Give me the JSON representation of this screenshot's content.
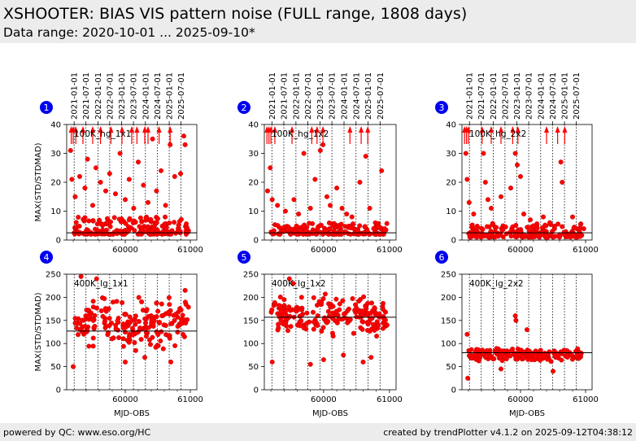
{
  "header": {
    "title": "XSHOOTER: BIAS VIS pattern noise (FULL range, 1808 days)",
    "subtitle": "Data range: 2020-10-01 ... 2025-09-10*"
  },
  "footer": {
    "left": "powered by QC: www.eso.org/HC",
    "right": "created by trendPlotter v4.1.2 on 2025-09-12T04:38:12"
  },
  "chart_data": [
    {
      "type": "scatter",
      "index": "1",
      "label": "100K_hg_1x1",
      "ylabel": "MAX(STD/STDMAD)",
      "xlabel": "",
      "ylim": [
        0,
        40
      ],
      "yticks": [
        0,
        10,
        20,
        30,
        40
      ],
      "xlim": [
        59100,
        61100
      ],
      "xticks": [
        60000,
        61000
      ],
      "reference": 2.5,
      "typical": [
        2,
        8
      ],
      "outliers": [
        [
          59160,
          31
        ],
        [
          59180,
          21
        ],
        [
          59230,
          15
        ],
        [
          59300,
          22
        ],
        [
          59380,
          18
        ],
        [
          59420,
          28
        ],
        [
          59500,
          12
        ],
        [
          59550,
          25
        ],
        [
          59620,
          20
        ],
        [
          59700,
          17
        ],
        [
          59760,
          23
        ],
        [
          59850,
          16
        ],
        [
          59920,
          30
        ],
        [
          60000,
          14
        ],
        [
          60060,
          21
        ],
        [
          60130,
          11
        ],
        [
          60200,
          27
        ],
        [
          60280,
          19
        ],
        [
          60350,
          13
        ],
        [
          60420,
          35
        ],
        [
          60480,
          17
        ],
        [
          60550,
          24
        ],
        [
          60620,
          12
        ],
        [
          60690,
          33
        ],
        [
          60760,
          22
        ],
        [
          60850,
          23
        ],
        [
          60900,
          36
        ],
        [
          60920,
          33
        ]
      ],
      "arrows": [
        59170,
        59200,
        59240,
        59350,
        59500,
        59620,
        59780,
        59950,
        60100,
        60180,
        60300,
        60350,
        60520,
        60690
      ]
    },
    {
      "type": "scatter",
      "index": "2",
      "label": "100K_hg_1x2",
      "ylabel": "",
      "xlabel": "",
      "ylim": [
        0,
        40
      ],
      "yticks": [
        0,
        10,
        20,
        30,
        40
      ],
      "xlim": [
        59100,
        61100
      ],
      "xticks": [
        60000,
        61000
      ],
      "reference": 2.5,
      "typical": [
        2,
        6
      ],
      "outliers": [
        [
          59150,
          17
        ],
        [
          59190,
          25
        ],
        [
          59220,
          14
        ],
        [
          59300,
          12
        ],
        [
          59420,
          10
        ],
        [
          59550,
          14
        ],
        [
          59620,
          9
        ],
        [
          59700,
          30
        ],
        [
          59800,
          11
        ],
        [
          59870,
          21
        ],
        [
          59950,
          31
        ],
        [
          59990,
          33
        ],
        [
          60050,
          15
        ],
        [
          60100,
          12
        ],
        [
          60200,
          18
        ],
        [
          60280,
          11
        ],
        [
          60350,
          9
        ],
        [
          60430,
          8
        ],
        [
          60550,
          20
        ],
        [
          60640,
          29
        ],
        [
          60700,
          11
        ],
        [
          60880,
          24
        ]
      ],
      "arrows": [
        59140,
        59170,
        59200,
        59260,
        59520,
        59820,
        59900,
        59990,
        60400,
        60570,
        60670
      ]
    },
    {
      "type": "scatter",
      "index": "3",
      "label": "100K_hg_2x2",
      "ylabel": "",
      "xlabel": "",
      "ylim": [
        0,
        40
      ],
      "yticks": [
        0,
        10,
        20,
        30,
        40
      ],
      "xlim": [
        59100,
        61100
      ],
      "xticks": [
        60000,
        61000
      ],
      "reference": 2.5,
      "typical": [
        1,
        6
      ],
      "outliers": [
        [
          59160,
          30
        ],
        [
          59180,
          21
        ],
        [
          59210,
          13
        ],
        [
          59280,
          9
        ],
        [
          59430,
          30
        ],
        [
          59460,
          20
        ],
        [
          59500,
          14
        ],
        [
          59550,
          11
        ],
        [
          59700,
          15
        ],
        [
          59850,
          18
        ],
        [
          59920,
          30
        ],
        [
          59950,
          26
        ],
        [
          60000,
          22
        ],
        [
          60050,
          9
        ],
        [
          60150,
          7
        ],
        [
          60350,
          8
        ],
        [
          60450,
          6
        ],
        [
          60620,
          27
        ],
        [
          60640,
          20
        ],
        [
          60800,
          8
        ]
      ],
      "arrows": [
        59140,
        59170,
        59200,
        59410,
        59550,
        59700,
        59880,
        59960,
        60400,
        60570,
        60680
      ]
    },
    {
      "type": "scatter",
      "index": "4",
      "label": "400K_lg_1x1",
      "ylabel": "MAX(STD/STDMAD)",
      "xlabel": "MJD-OBS",
      "ylim": [
        0,
        250
      ],
      "yticks": [
        0,
        50,
        100,
        150,
        200,
        250
      ],
      "xlim": [
        59100,
        61100
      ],
      "xticks": [
        60000,
        61000
      ],
      "reference": 127,
      "typical": [
        75,
        215
      ],
      "outliers": [
        [
          59200,
          50
        ],
        [
          59320,
          245
        ],
        [
          59560,
          240
        ],
        [
          60000,
          60
        ],
        [
          60300,
          70
        ],
        [
          60700,
          60
        ],
        [
          60920,
          215
        ]
      ],
      "arrows": []
    },
    {
      "type": "scatter",
      "index": "5",
      "label": "400K_lg_1x2",
      "ylabel": "",
      "xlabel": "MJD-OBS",
      "ylim": [
        0,
        250
      ],
      "yticks": [
        0,
        50,
        100,
        150,
        200,
        250
      ],
      "xlim": [
        59100,
        61100
      ],
      "xticks": [
        60000,
        61000
      ],
      "reference": 157,
      "typical": [
        100,
        215
      ],
      "outliers": [
        [
          59220,
          60
        ],
        [
          59480,
          240
        ],
        [
          59540,
          230
        ],
        [
          59800,
          55
        ],
        [
          60000,
          65
        ],
        [
          60300,
          75
        ],
        [
          60600,
          60
        ],
        [
          60720,
          70
        ]
      ],
      "arrows": []
    },
    {
      "type": "scatter",
      "index": "6",
      "label": "400K_lg_2x2",
      "ylabel": "",
      "xlabel": "MJD-OBS",
      "ylim": [
        0,
        250
      ],
      "yticks": [
        0,
        50,
        100,
        150,
        200,
        250
      ],
      "xlim": [
        59100,
        61100
      ],
      "xticks": [
        60000,
        61000
      ],
      "reference": 80,
      "typical": [
        55,
        95
      ],
      "outliers": [
        [
          59180,
          120
        ],
        [
          59190,
          25
        ],
        [
          59920,
          160
        ],
        [
          59930,
          150
        ],
        [
          60100,
          130
        ],
        [
          59700,
          45
        ],
        [
          60500,
          40
        ]
      ],
      "arrows": []
    }
  ],
  "date_ticks": {
    "labels": [
      "2021-01-01",
      "2021-07-01",
      "2022-01-01",
      "2022-07-01",
      "2023-01-01",
      "2023-07-01",
      "2024-01-01",
      "2024-07-01",
      "2025-01-01",
      "2025-07-01"
    ],
    "mjd": [
      59215,
      59396,
      59580,
      59761,
      59945,
      60126,
      60310,
      60492,
      60676,
      60857
    ]
  },
  "colors": {
    "marker": "#ff0000",
    "marker_edge": "#b00000",
    "reference": "#000000",
    "badge": "#0000ee",
    "header_bg": "#ececec"
  }
}
